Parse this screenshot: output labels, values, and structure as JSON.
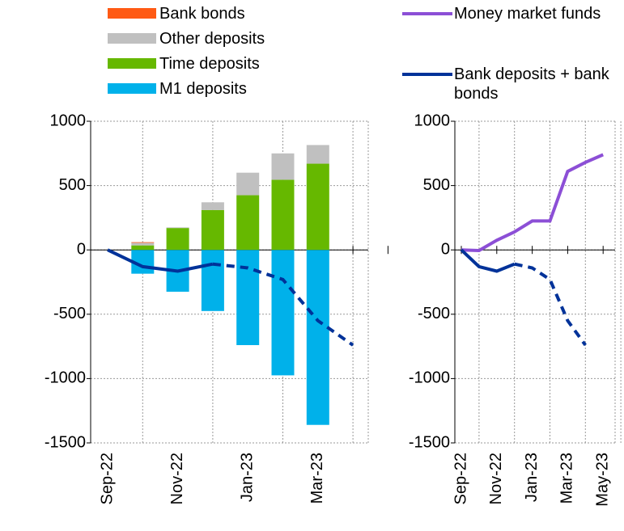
{
  "chart_data": [
    {
      "type": "bar",
      "stacked": true,
      "grid": true,
      "categories": [
        "Sep-22",
        null,
        "Nov-22",
        null,
        "Jan-23",
        null,
        "Mar-23",
        null
      ],
      "ylim": [
        -1500,
        1000
      ],
      "yticks": [
        -1500,
        -1000,
        -500,
        0,
        500,
        1000
      ],
      "series": [
        {
          "name": "Bank bonds",
          "color": "#ff5a14",
          "values": [
            null,
            5,
            0,
            0,
            0,
            0,
            0,
            null
          ]
        },
        {
          "name": "Other deposits",
          "color": "#c0c0c0",
          "values": [
            null,
            20,
            5,
            60,
            175,
            205,
            145,
            null
          ]
        },
        {
          "name": "Time deposits",
          "color": "#66b800",
          "values": [
            null,
            35,
            170,
            310,
            425,
            545,
            670,
            null
          ]
        },
        {
          "name": "M1 deposits",
          "color": "#00b1ea",
          "values": [
            null,
            -185,
            -325,
            -475,
            -740,
            -975,
            -1360,
            null
          ]
        },
        {
          "type": "line",
          "color": "#003299",
          "dash_start": 4,
          "values": [
            0,
            -130,
            -165,
            -110,
            -140,
            -230,
            -550,
            -740
          ]
        }
      ]
    },
    {
      "type": "line",
      "grid": true,
      "categories": [
        "Sep-22",
        null,
        "Nov-22",
        null,
        "Jan-23",
        null,
        "Mar-23",
        null,
        "May-23"
      ],
      "ylim": [
        -1500,
        1000
      ],
      "yticks": [
        -1500,
        -1000,
        -500,
        0,
        500,
        1000
      ],
      "series": [
        {
          "name": "Money market funds",
          "color": "#8c4fd6",
          "values": [
            0,
            -5,
            75,
            140,
            225,
            225,
            610,
            680,
            740
          ]
        },
        {
          "name": "Bank deposits + bank bonds",
          "color": "#003299",
          "dash_start": 4,
          "values": [
            0,
            -130,
            -165,
            -110,
            -140,
            -230,
            -550,
            -740,
            null
          ]
        }
      ]
    }
  ]
}
